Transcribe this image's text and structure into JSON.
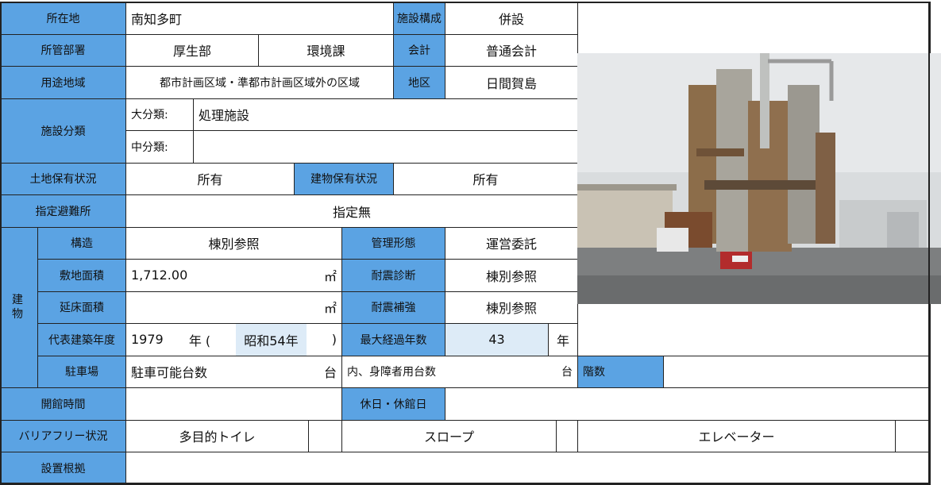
{
  "table": {
    "rows": [
      [
        "所在地",
        "南知多町",
        "施設構成",
        "併設"
      ],
      [
        "所管部署",
        "厚生部",
        "環境課",
        "会計",
        "普通会計"
      ],
      [
        "用途地域",
        "都市計画区域・準都市計画区域外の区域",
        "地区",
        "日間賀島"
      ],
      [
        "施設分類",
        "大分類:",
        "処理施設"
      ],
      [
        "中分類:"
      ],
      [
        "土地保有状況",
        "所有",
        "建物保有状況",
        "所有"
      ],
      [
        "指定避難所",
        "指定無"
      ],
      [
        "建物",
        "構造",
        "棟別参照",
        "管理形態",
        "運営委託"
      ],
      [
        "敷地面積",
        "1,712.00",
        "㎡",
        "耐震診断",
        "棟別参照"
      ],
      [
        "延床面積",
        "㎡",
        "耐震補強",
        "棟別参照"
      ],
      [
        "代表建築年度",
        "1979",
        "年 (",
        "昭和54年",
        ")",
        "最大経過年数",
        "43",
        "年"
      ],
      [
        "駐車場",
        "駐車可能台数",
        "台",
        "内、身障者用台数",
        "台",
        "階数"
      ],
      [
        "開館時間",
        "休日・休館日"
      ],
      [
        "バリアフリー状況",
        "多目的トイレ",
        "スロープ",
        "エレベーター"
      ],
      [
        "設置根拠"
      ]
    ]
  }
}
